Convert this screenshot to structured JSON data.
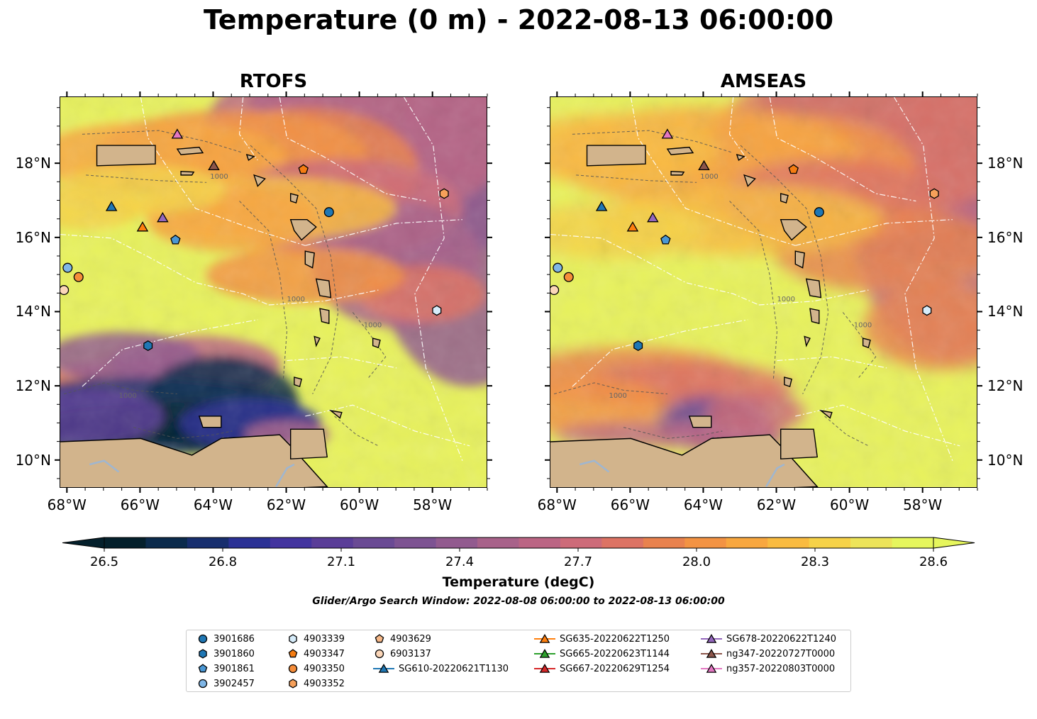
{
  "title": "Temperature (0 m) - 2022-08-13 06:00:00",
  "panels": [
    {
      "title": "RTOFS"
    },
    {
      "title": "AMSEAS"
    }
  ],
  "axes": {
    "lon_ticks": [
      "68°W",
      "66°W",
      "64°W",
      "62°W",
      "60°W",
      "58°W"
    ],
    "lat_ticks": [
      "18°N",
      "16°N",
      "14°N",
      "12°N",
      "10°N"
    ],
    "lon_range": [
      -68.2,
      -56.5
    ],
    "lat_range": [
      9.25,
      19.8
    ]
  },
  "colorbar": {
    "label": "Temperature (degC)",
    "ticks": [
      "26.5",
      "26.8",
      "27.1",
      "27.4",
      "27.7",
      "28.0",
      "28.3",
      "28.6"
    ],
    "range": [
      26.5,
      28.6
    ],
    "extend": "both",
    "colormap": "thermal",
    "colors": [
      "#04202c",
      "#0b2b4c",
      "#172e6e",
      "#2b3195",
      "#43349f",
      "#5a3d98",
      "#6a4a94",
      "#7d5392",
      "#925b8f",
      "#a8628a",
      "#bb6584",
      "#cd6b79",
      "#dd7364",
      "#e9824e",
      "#f39343",
      "#f8a73f",
      "#f9bb40",
      "#f6d248",
      "#ede459",
      "#e6f65d"
    ]
  },
  "contour_label": "1000",
  "search_window": "Glider/Argo Search Window: 2022-08-08 06:00:00 to 2022-08-13 06:00:00",
  "colors": {
    "land": "#d2b48c",
    "coast": "#000000",
    "warm_sea": "#e8f25c"
  },
  "legend": [
    {
      "label": "3901686",
      "marker": "circle",
      "color": "#1f77b4"
    },
    {
      "label": "3901860",
      "marker": "hexagon",
      "color": "#1f77b4"
    },
    {
      "label": "3901861",
      "marker": "pentagon",
      "color": "#4a97d4"
    },
    {
      "label": "3902457",
      "marker": "circle",
      "color": "#7fb6e6"
    },
    {
      "label": "4903339",
      "marker": "hexagon",
      "color": "#d6ecfa"
    },
    {
      "label": "4903347",
      "marker": "pentagon",
      "color": "#f47c12"
    },
    {
      "label": "4903350",
      "marker": "circle",
      "color": "#f58d3a"
    },
    {
      "label": "4903352",
      "marker": "hexagon",
      "color": "#f6a05a"
    },
    {
      "label": "4903629",
      "marker": "pentagon",
      "color": "#f6b888"
    },
    {
      "label": "6903137",
      "marker": "circle",
      "color": "#fbd6b8"
    },
    {
      "label": "SG610-20220621T1130",
      "marker": "triangle",
      "color": "#1f77b4",
      "line": true
    },
    {
      "label": "SG635-20220622T1250",
      "marker": "triangle",
      "color": "#ff7f0e",
      "line": true
    },
    {
      "label": "SG665-20220623T1144",
      "marker": "triangle",
      "color": "#2ca02c",
      "line": true
    },
    {
      "label": "SG667-20220629T1254",
      "marker": "triangle",
      "color": "#d62728",
      "line": true
    },
    {
      "label": "SG678-20220622T1240",
      "marker": "triangle",
      "color": "#9467bd",
      "line": true
    },
    {
      "label": "ng347-20220727T0000",
      "marker": "triangle",
      "color": "#8c564b",
      "line": true
    },
    {
      "label": "ng357-20220803T0000",
      "marker": "triangle",
      "color": "#e377c2",
      "line": true
    }
  ],
  "observations": [
    {
      "id": "3901686",
      "lon": -60.85,
      "lat": 16.7
    },
    {
      "id": "3901860",
      "lon": -65.8,
      "lat": 13.1
    },
    {
      "id": "3901861",
      "lon": -65.05,
      "lat": 15.95
    },
    {
      "id": "3902457",
      "lon": -68.0,
      "lat": 15.2
    },
    {
      "id": "4903339",
      "lon": -57.9,
      "lat": 14.05
    },
    {
      "id": "4903347",
      "lon": -61.55,
      "lat": 17.85
    },
    {
      "id": "4903350",
      "lon": -67.7,
      "lat": 14.95
    },
    {
      "id": "4903352",
      "lon": -57.7,
      "lat": 17.2
    },
    {
      "id": "6903137",
      "lon": -68.1,
      "lat": 14.6
    },
    {
      "id": "SG610-20220621T1130",
      "lon": -66.8,
      "lat": 16.85
    },
    {
      "id": "SG635-20220622T1250",
      "lon": -65.95,
      "lat": 16.3
    },
    {
      "id": "SG678-20220622T1240",
      "lon": -65.4,
      "lat": 16.55
    },
    {
      "id": "ng347-20220727T0000",
      "lon": -64.0,
      "lat": 17.95
    },
    {
      "id": "ng357-20220803T0000",
      "lon": -65.0,
      "lat": 18.8
    }
  ]
}
